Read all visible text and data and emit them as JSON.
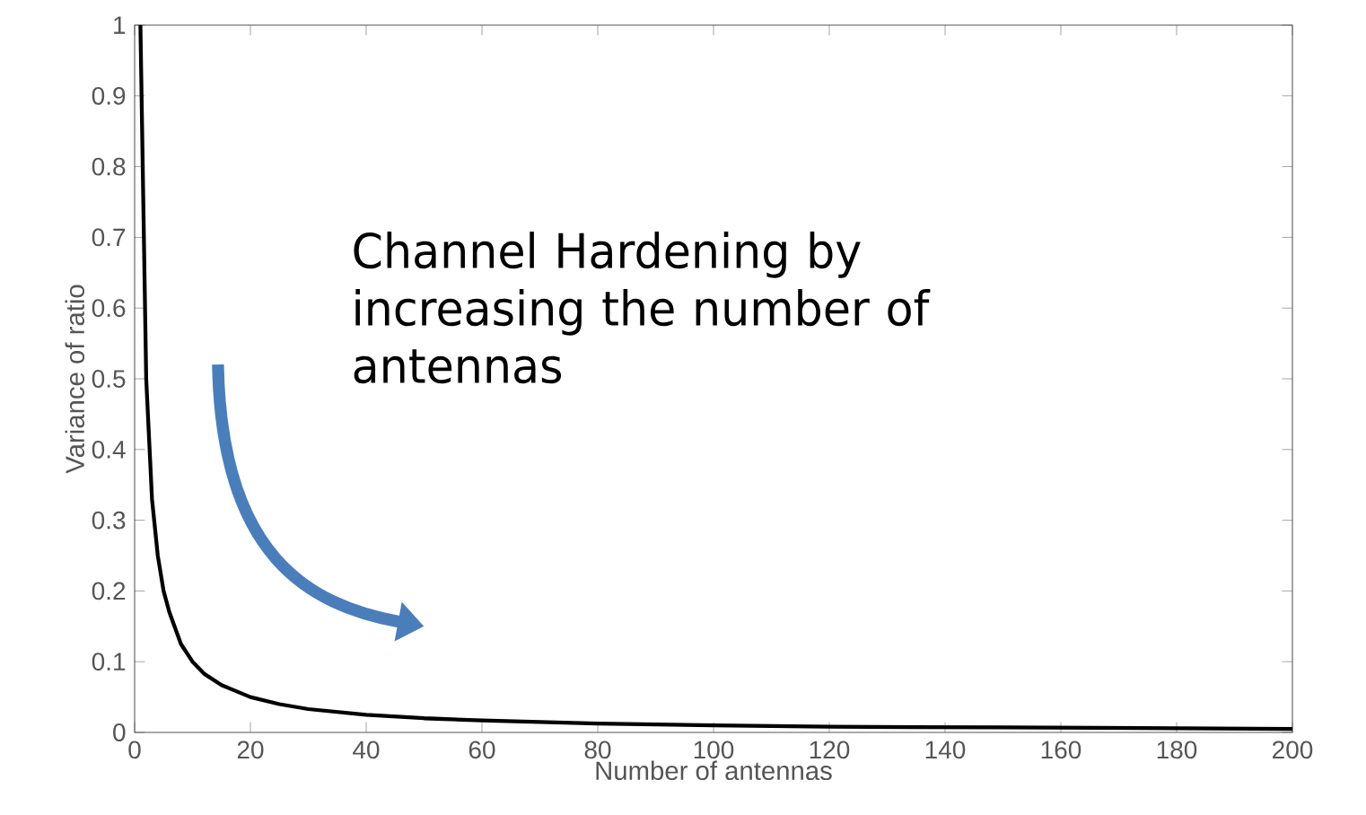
{
  "chart_data": {
    "type": "line",
    "xlabel": "Number of antennas",
    "ylabel": "Variance of ratio",
    "x": [
      1,
      2,
      3,
      4,
      5,
      6,
      8,
      10,
      12,
      15,
      20,
      25,
      30,
      40,
      50,
      60,
      80,
      100,
      120,
      150,
      200
    ],
    "series": [
      {
        "color": "#000000",
        "values": [
          1,
          0.5,
          0.33,
          0.25,
          0.2,
          0.17,
          0.125,
          0.1,
          0.083,
          0.067,
          0.05,
          0.04,
          0.033,
          0.025,
          0.02,
          0.017,
          0.0125,
          0.01,
          0.008,
          0.007,
          0.005
        ]
      }
    ],
    "xlim": [
      0,
      200
    ],
    "ylim": [
      0,
      1
    ],
    "xticks": [
      0,
      20,
      40,
      60,
      80,
      100,
      120,
      140,
      160,
      180,
      200
    ],
    "yticks": [
      0,
      0.1,
      0.2,
      0.3,
      0.4,
      0.5,
      0.6,
      0.7,
      0.8,
      0.9,
      1
    ],
    "annotations": [
      "Channel Hardening by increasing the number of antennas"
    ]
  }
}
